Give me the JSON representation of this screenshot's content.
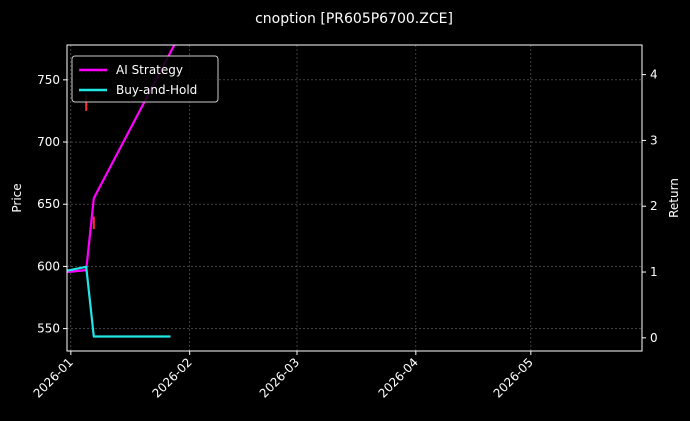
{
  "chart_data": {
    "type": "line",
    "title": "cnoption [PR605P6700.ZCE]",
    "ylabel": "Price",
    "y2label": "Return",
    "x_ticks": [
      "2026-01",
      "2026-02",
      "2026-03",
      "2026-04",
      "2026-05"
    ],
    "xlim": [
      "2025-12-31",
      "2026-05-30"
    ],
    "y_ticks": [
      550,
      600,
      650,
      700,
      750
    ],
    "ylim": [
      532,
      778
    ],
    "y2_ticks": [
      0,
      1,
      2,
      3,
      4
    ],
    "y2lim": [
      -0.2,
      4.45
    ],
    "grid": true,
    "legend_placement": "top-left",
    "background": "#000000",
    "series": [
      {
        "name": "AI Strategy",
        "axis": "right",
        "color": "#ff00ff",
        "x": [
          "2025-12-31",
          "2026-01-05",
          "2026-01-07",
          "2026-01-28"
        ],
        "values": [
          1.0,
          1.03,
          2.12,
          4.45
        ]
      },
      {
        "name": "Buy-and-Hold",
        "axis": "right",
        "color": "#22e5e5",
        "x": [
          "2025-12-31",
          "2026-01-05",
          "2026-01-07",
          "2026-01-27"
        ],
        "values": [
          1.02,
          1.08,
          0.02,
          0.02
        ]
      }
    ],
    "price_marks": {
      "color": "#ff2a2a",
      "points": [
        {
          "x": "2026-01-05",
          "low": 725,
          "high": 738
        },
        {
          "x": "2026-01-07",
          "low": 630,
          "high": 640
        }
      ]
    }
  }
}
